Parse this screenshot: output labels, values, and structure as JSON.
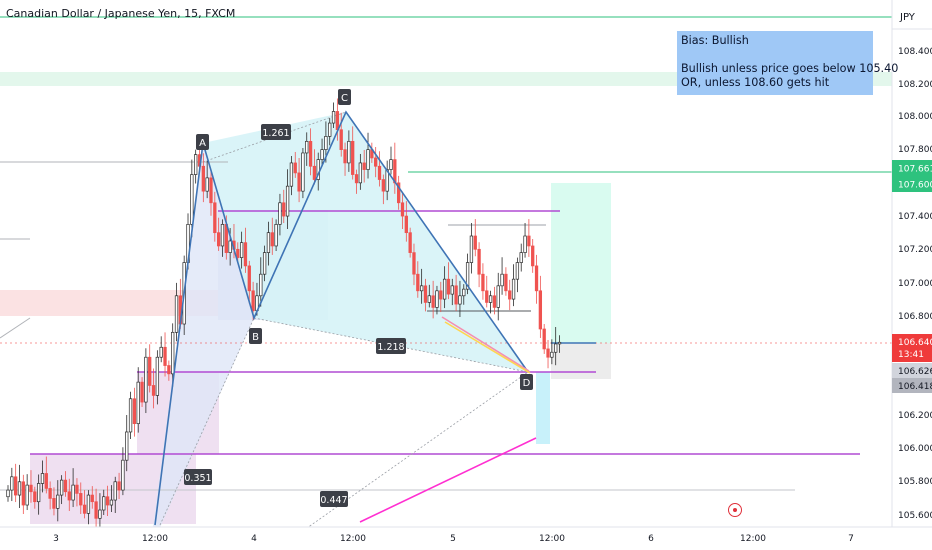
{
  "header": {
    "title": "Canadian Dollar / Japanese Yen, 15, FXCM"
  },
  "price_axis": {
    "currency": "JPY",
    "ticks": [
      "108.400",
      "108.200",
      "108.000",
      "107.800",
      "107.400",
      "107.200",
      "107.000",
      "106.800",
      "106.200",
      "106.000",
      "105.800",
      "105.600"
    ]
  },
  "price_labels": {
    "upper_level": "107.661",
    "target_level": "107.600",
    "last_price": "106.640",
    "countdown": "13:41",
    "entry_level": "106.626",
    "stop_level": "106.418"
  },
  "time_axis": {
    "ticks": [
      "3",
      "12:00",
      "4",
      "12:00",
      "5",
      "12:00",
      "6",
      "12:00",
      "7"
    ]
  },
  "pattern_labels": {
    "A": "A",
    "B": "B",
    "C": "C",
    "D": "D"
  },
  "ratio_labels": {
    "ab_c": "1.261",
    "bc_d": "1.218",
    "xa_b": "0.351",
    "ad": "0.447"
  },
  "note": {
    "line1": "Bias: Bullish",
    "line2": "Bullish unless price goes below 105.40",
    "line3": "OR, unless 108.60 gets hit"
  },
  "colors": {
    "up_candle": "#26a69a",
    "down_candle": "#ef5350",
    "candle_body": "#2b2b2b",
    "pattern_fill": "#bfeff5",
    "pattern_line": "#3f74b5",
    "magenta_level": "#b14bd3",
    "green_level": "#2ec27e",
    "last_price": "#ef3b3b",
    "note_bg": "#9fc8f6"
  },
  "chart_data": {
    "type": "candlestick",
    "symbol": "CAD/JPY",
    "interval": "15",
    "ylim": [
      105.6,
      108.5
    ],
    "x_ticks": [
      "3",
      "12:00",
      "4",
      "12:00",
      "5",
      "12:00",
      "6",
      "12:00",
      "7"
    ],
    "harmonic_points": [
      {
        "label": "A",
        "price": 107.77
      },
      {
        "label": "B",
        "price": 106.78
      },
      {
        "label": "C",
        "price": 108.03
      },
      {
        "label": "D",
        "price": 106.54
      }
    ],
    "ratios": [
      "1.261",
      "1.218",
      "0.351",
      "0.447"
    ],
    "levels": {
      "magenta": [
        107.43,
        106.56,
        105.97
      ],
      "green": [
        108.49,
        107.61
      ],
      "red_dashed": 106.64
    },
    "trade": {
      "entry": 106.626,
      "target": 107.6,
      "stop": 106.418
    },
    "last_price": 106.64,
    "countdown": "13:41",
    "closes": [
      105.75,
      105.83,
      105.72,
      105.8,
      105.66,
      105.78,
      105.74,
      105.68,
      105.79,
      105.85,
      105.76,
      105.7,
      105.64,
      105.72,
      105.81,
      105.74,
      105.69,
      105.78,
      105.73,
      105.66,
      105.61,
      105.72,
      105.68,
      105.58,
      105.63,
      105.71,
      105.66,
      105.69,
      105.8,
      105.75,
      105.93,
      106.1,
      106.3,
      106.15,
      106.4,
      106.28,
      106.55,
      106.38,
      106.32,
      106.55,
      106.61,
      106.5,
      106.45,
      106.7,
      106.92,
      106.75,
      107.12,
      107.35,
      107.65,
      107.77,
      107.7,
      107.55,
      107.63,
      107.48,
      107.3,
      107.22,
      107.35,
      107.18,
      107.25,
      107.2,
      107.15,
      107.24,
      107.1,
      106.95,
      106.83,
      106.92,
      107.05,
      107.18,
      107.3,
      107.22,
      107.35,
      107.48,
      107.4,
      107.58,
      107.72,
      107.66,
      107.55,
      107.78,
      107.85,
      107.7,
      107.62,
      107.74,
      107.8,
      107.88,
      107.96,
      108.03,
      107.92,
      107.8,
      107.72,
      107.85,
      107.65,
      107.6,
      107.72,
      107.68,
      107.8,
      107.75,
      107.7,
      107.62,
      107.55,
      107.68,
      107.74,
      107.6,
      107.48,
      107.4,
      107.3,
      107.18,
      107.05,
      106.95,
      106.98,
      106.88,
      106.92,
      106.85,
      106.95,
      106.9,
      107.02,
      106.93,
      106.98,
      106.87,
      106.92,
      106.96,
      107.12,
      107.28,
      107.2,
      107.05,
      106.95,
      106.88,
      106.92,
      106.85,
      106.98,
      107.05,
      106.95,
      106.9,
      107.02,
      107.12,
      107.18,
      107.28,
      107.22,
      107.1,
      106.95,
      106.72,
      106.6,
      106.55,
      106.58,
      106.63,
      106.64
    ]
  }
}
